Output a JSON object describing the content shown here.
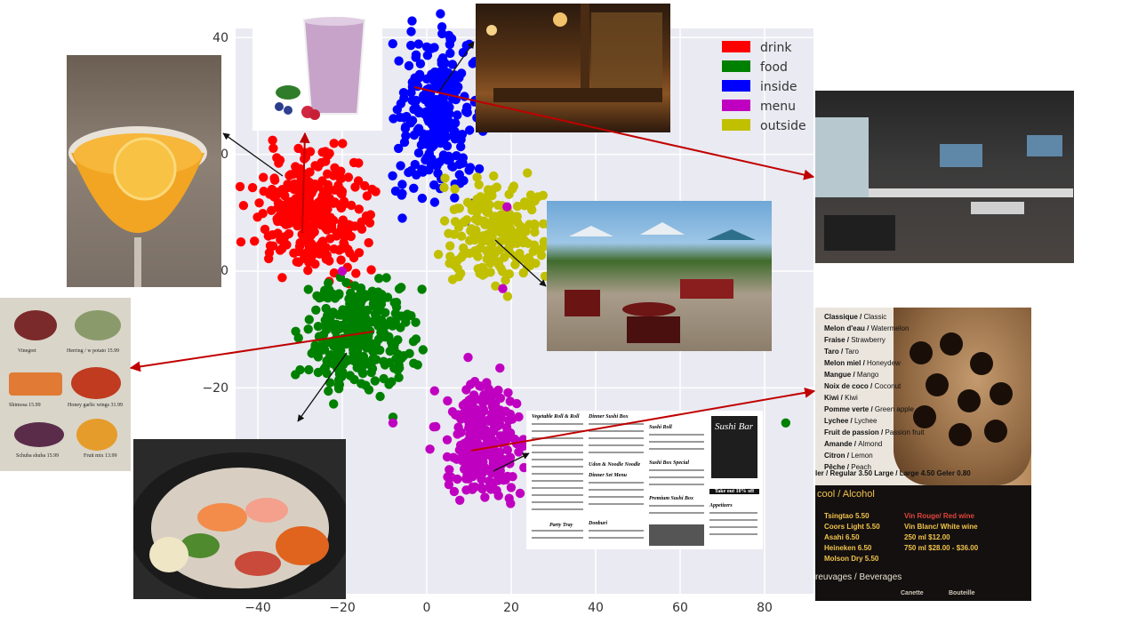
{
  "chart_data": {
    "type": "scatter",
    "title": "",
    "xlabel": "",
    "ylabel": "",
    "xlim": [
      -47,
      92
    ],
    "ylim": [
      -38,
      41
    ],
    "x_ticks": [
      "−40",
      "−20",
      "0",
      "20",
      "40",
      "60",
      "80"
    ],
    "y_ticks": [
      "40",
      "20",
      "0",
      "−20"
    ],
    "grid": true,
    "legend_position": "top-right",
    "series": [
      {
        "name": "drink",
        "color": "#ff0000",
        "center": [
          -27,
          10
        ],
        "spread": [
          6.5,
          4.8
        ],
        "n": 300
      },
      {
        "name": "food",
        "color": "#008000",
        "center": [
          -16,
          -11
        ],
        "spread": [
          6.0,
          5.0
        ],
        "n": 300
      },
      {
        "name": "inside",
        "color": "#0000ff",
        "center": [
          3,
          27
        ],
        "spread": [
          5.0,
          7.0
        ],
        "n": 260
      },
      {
        "name": "menu",
        "color": "#c000c0",
        "center": [
          13,
          -29
        ],
        "spread": [
          4.5,
          5.0
        ],
        "n": 260
      },
      {
        "name": "outside",
        "color": "#c0c000",
        "center": [
          17,
          7
        ],
        "spread": [
          6.5,
          4.5
        ],
        "n": 220
      }
    ]
  },
  "annotations": {
    "menu_card_items": [
      "Vinegret",
      "Herring / w potato 15.99",
      "Shimosa 15.99",
      "Honey garlic wings 31.99",
      "Schuba shuba 15.99",
      "Fruit mix 13.99"
    ],
    "sushi_menu": {
      "sections": [
        "Vegetable Roll & Roll",
        "Dinner Sushi Box",
        "Udon & Noodle Noodle",
        "Sushi Roll",
        "Dinner Set Menu",
        "Party Tray",
        "Sushi Box Special",
        "Premium Sushi Box",
        "Donburi",
        "Appetizers"
      ],
      "brand": "Sushi Bar",
      "promo": "Take out 10% off"
    },
    "bubble_tea_flavors": [
      {
        "fr": "Classique",
        "en": "Classic"
      },
      {
        "fr": "Melon d'eau",
        "en": "Watermelon"
      },
      {
        "fr": "Fraise",
        "en": "Strawberry"
      },
      {
        "fr": "Taro",
        "en": "Taro"
      },
      {
        "fr": "Melon miel",
        "en": "Honeydew"
      },
      {
        "fr": "Mangue",
        "en": "Mango"
      },
      {
        "fr": "Noix de coco",
        "en": "Coconut"
      },
      {
        "fr": "Kiwi",
        "en": "Kiwi"
      },
      {
        "fr": "Pomme verte",
        "en": "Green apple"
      },
      {
        "fr": "Lychee",
        "en": "Lychee"
      },
      {
        "fr": "Fruit de passion",
        "en": "Passion fruit"
      },
      {
        "fr": "Amande",
        "en": "Almond"
      },
      {
        "fr": "Citron",
        "en": "Lemon"
      },
      {
        "fr": "Pêche",
        "en": "Peach"
      }
    ],
    "bubble_tea_sizes": "ler / Regular 3.50  Large / Large 4.50  Geler 0.80",
    "alcohol_title": "cool / Alcohol",
    "alcohol_left": [
      "Tsingtao 5.50",
      "Coors Light 5.50",
      "Asahi 6.50",
      "Heineken 6.50",
      "Molson Dry 5.50"
    ],
    "alcohol_right": [
      "Vin Rouge/ Red wine",
      "Vin Blanc/ White wine",
      "250 ml $12.00",
      "750 ml $28.00 - $36.00"
    ],
    "beverages_title": "reuvages / Beverages",
    "col_labels": [
      "Canette",
      "Bouteille"
    ]
  }
}
